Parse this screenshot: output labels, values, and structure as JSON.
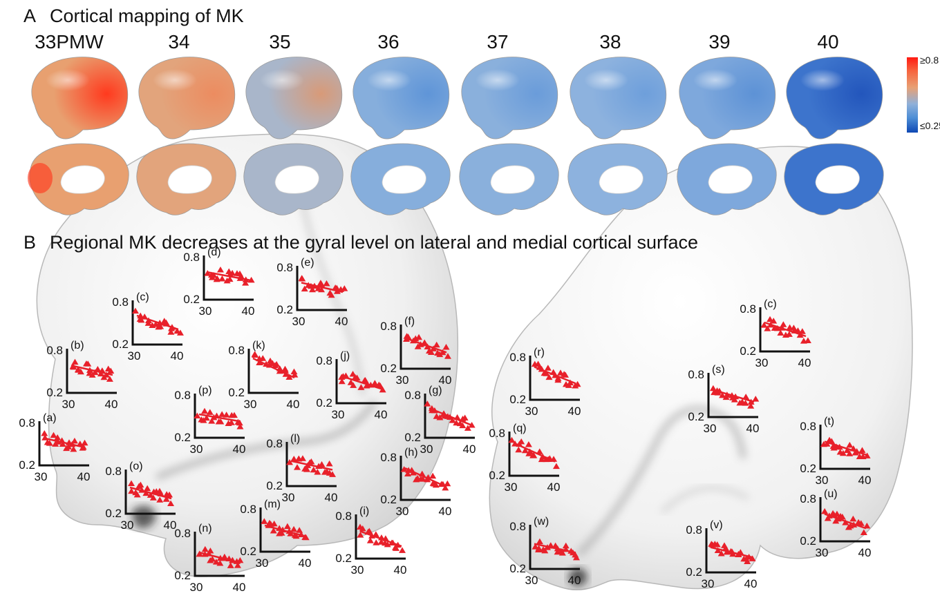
{
  "panel_a": {
    "letter": "A",
    "title": "Cortical mapping of MK",
    "weeks": [
      "33PMW",
      "34",
      "35",
      "36",
      "37",
      "38",
      "39",
      "40"
    ],
    "colorbar": {
      "max_label": "≥0.8",
      "min_label": "≤0.25",
      "high_color": "#ff1a12",
      "low_color": "#0e48b4"
    },
    "week_tint": [
      "#e8a070",
      "#e2a47c",
      "#a9b6ca",
      "#86aedc",
      "#8ab0dc",
      "#8db2de",
      "#7ea8dc",
      "#3d74cc"
    ],
    "week_hot": [
      "#ff3a1e",
      "#ec8c60",
      "#d89a78",
      "#5f95d8",
      "#6a9cda",
      "#6e9fdb",
      "#5d92d6",
      "#2356bc"
    ]
  },
  "panel_b": {
    "letter": "B",
    "title": "Regional MK decreases at the gyral level on lateral and medial cortical surface",
    "axis": {
      "y_ticks": [
        "0.8",
        "0.2"
      ],
      "x_ticks": [
        "30",
        "40"
      ],
      "x_range": [
        30,
        40
      ],
      "y_range": [
        0.2,
        0.8
      ]
    },
    "series_color": "#e8202a",
    "lateral_plots": [
      {
        "label": "(a)",
        "trend": [
          0.62,
          0.45
        ]
      },
      {
        "label": "(b)",
        "trend": [
          0.62,
          0.45
        ]
      },
      {
        "label": "(c)",
        "trend": [
          0.65,
          0.4
        ]
      },
      {
        "label": "(d)",
        "trend": [
          0.62,
          0.48
        ]
      },
      {
        "label": "(e)",
        "trend": [
          0.62,
          0.45
        ]
      },
      {
        "label": "(f)",
        "trend": [
          0.68,
          0.42
        ]
      },
      {
        "label": "(g)",
        "trend": [
          0.66,
          0.36
        ]
      },
      {
        "label": "(h)",
        "trend": [
          0.7,
          0.36
        ]
      },
      {
        "label": "(i)",
        "trend": [
          0.62,
          0.35
        ]
      },
      {
        "label": "(j)",
        "trend": [
          0.62,
          0.38
        ]
      },
      {
        "label": "(k)",
        "trend": [
          0.75,
          0.4
        ]
      },
      {
        "label": "(l)",
        "trend": [
          0.58,
          0.42
        ]
      },
      {
        "label": "(m)",
        "trend": [
          0.6,
          0.4
        ]
      },
      {
        "label": "(n)",
        "trend": [
          0.55,
          0.36
        ]
      },
      {
        "label": "(o)",
        "trend": [
          0.6,
          0.4
        ]
      },
      {
        "label": "(p)",
        "trend": [
          0.55,
          0.42
        ]
      }
    ],
    "medial_plots": [
      {
        "label": "(c)",
        "trend": [
          0.65,
          0.4
        ]
      },
      {
        "label": "(r)",
        "trend": [
          0.72,
          0.42
        ]
      },
      {
        "label": "(s)",
        "trend": [
          0.62,
          0.4
        ]
      },
      {
        "label": "(q)",
        "trend": [
          0.72,
          0.38
        ]
      },
      {
        "label": "(t)",
        "trend": [
          0.62,
          0.38
        ]
      },
      {
        "label": "(u)",
        "trend": [
          0.62,
          0.36
        ]
      },
      {
        "label": "(w)",
        "trend": [
          0.58,
          0.42
        ]
      },
      {
        "label": "(v)",
        "trend": [
          0.58,
          0.4
        ]
      }
    ]
  }
}
